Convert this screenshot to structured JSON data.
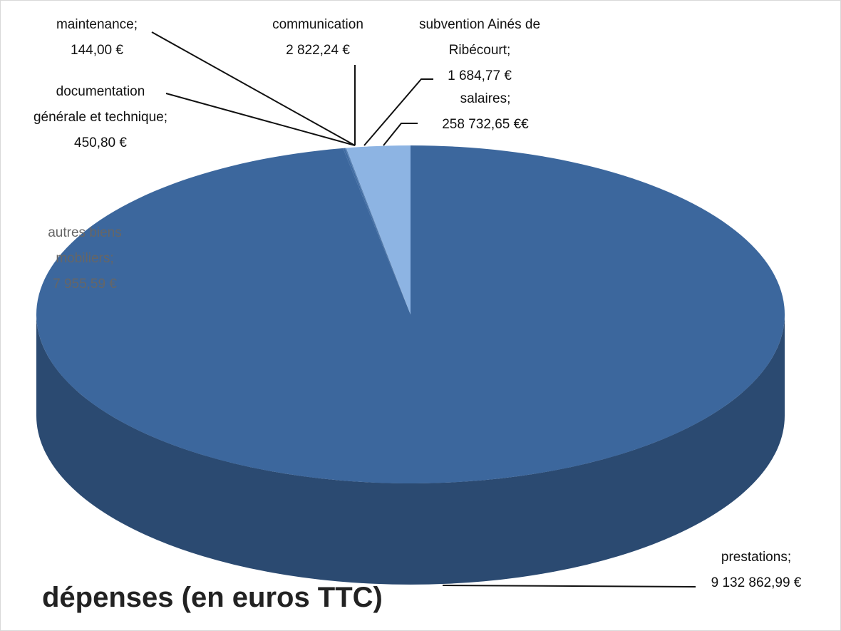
{
  "chart_data": {
    "type": "pie3d",
    "title": "dépenses (en euros TTC)",
    "categories": [
      "prestations;",
      "autres biens mobiliers;",
      "documentation générale et technique;",
      "maintenance;",
      "communication",
      "subvention Ainés de Ribécourt;",
      "salaires;"
    ],
    "values": [
      9132862.99,
      7955.59,
      450.8,
      144,
      2822.24,
      1684.77,
      258732.65
    ],
    "value_labels": [
      "9 132 862,99 €",
      "7 955,59 €",
      "450,80 €",
      "144,00 €",
      "2 822,24 €",
      "1 684,77 €",
      "258 732,65 €€"
    ],
    "colors": [
      "#3c679d",
      "#3f6ba2",
      "#4471a8",
      "#4471a8",
      "#4471a8",
      "#4a78b0",
      "#8db4e3"
    ]
  }
}
